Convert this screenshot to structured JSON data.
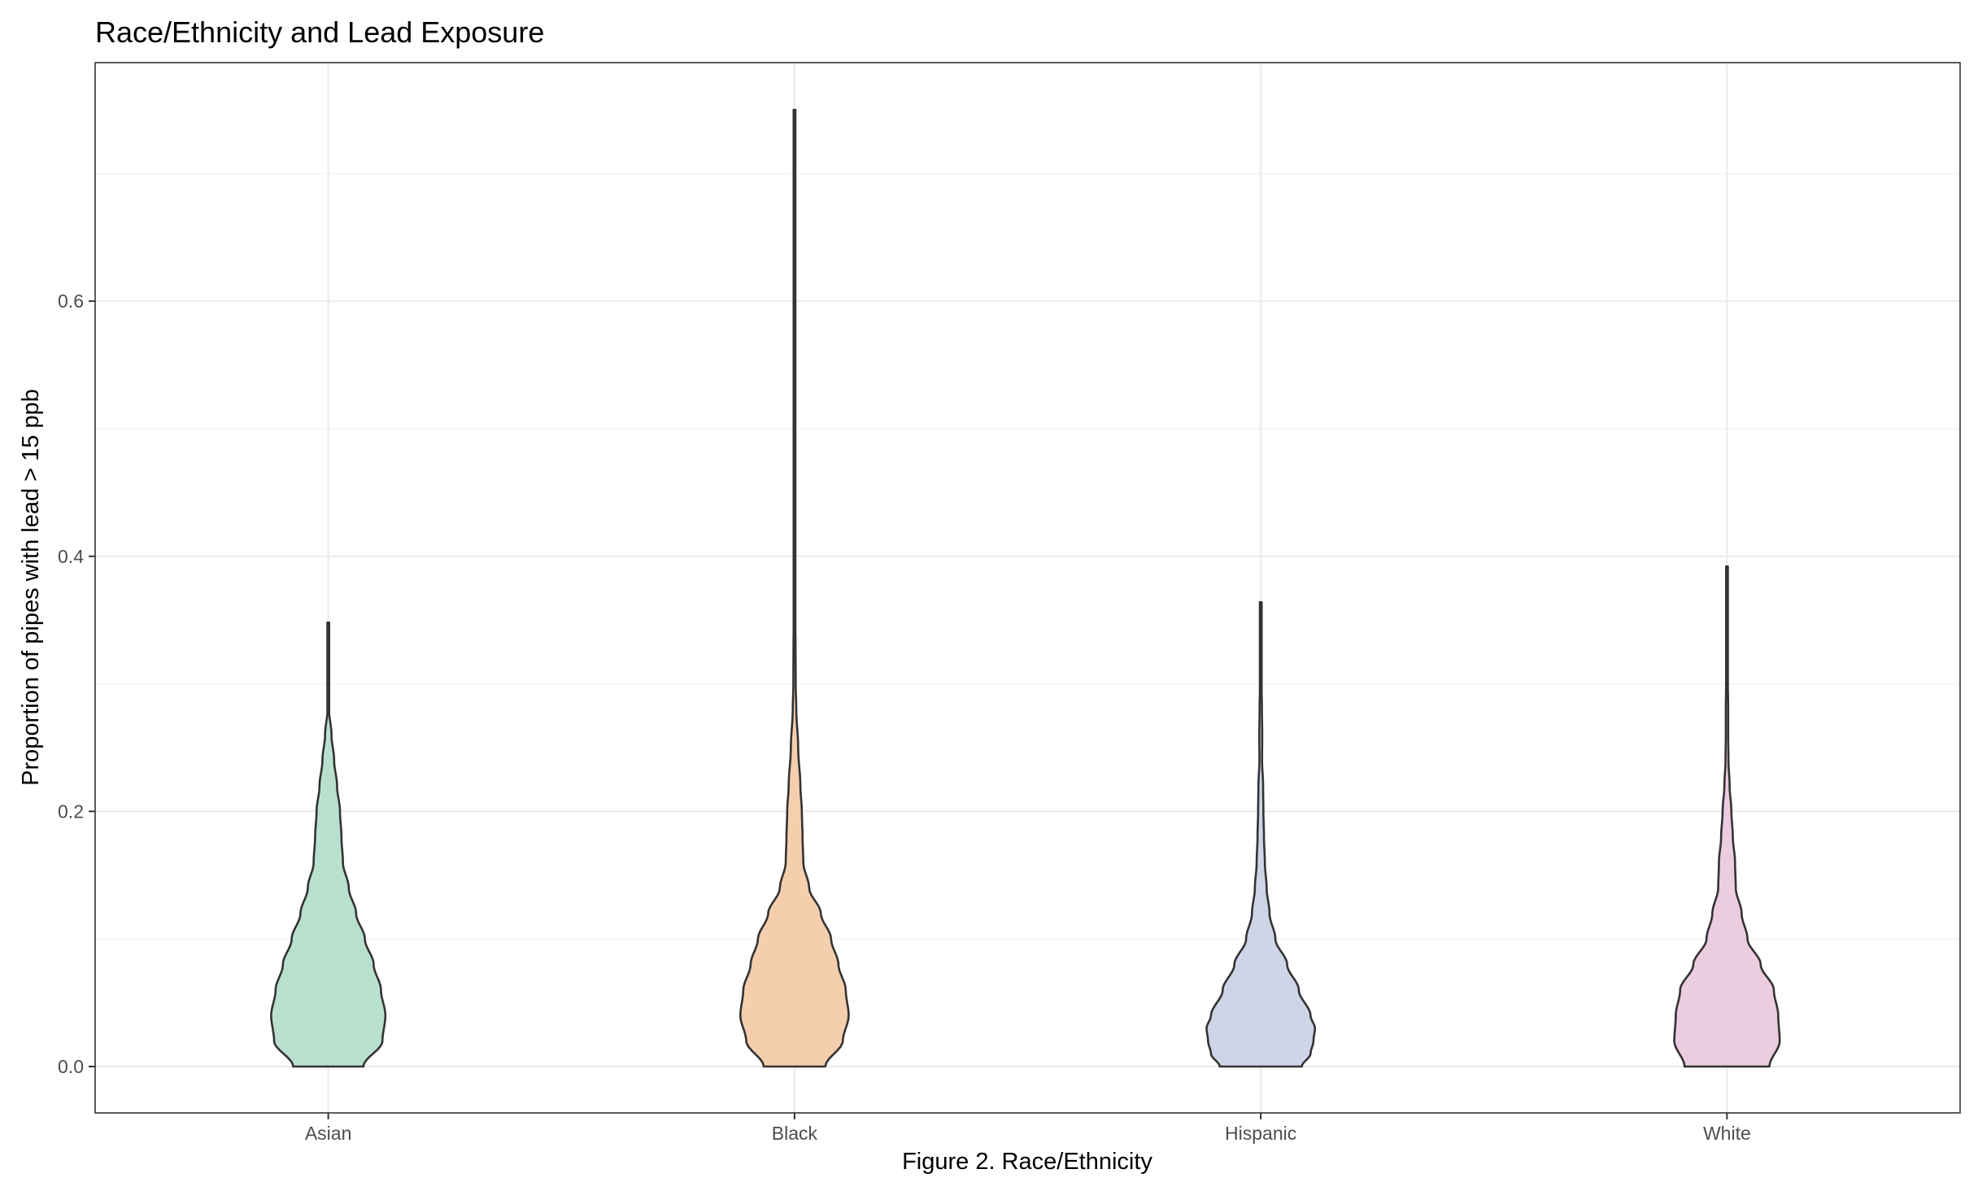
{
  "chart_data": {
    "type": "violin",
    "title": "Race/Ethnicity and Lead Exposure",
    "xlabel": "Figure 2. Race/Ethnicity",
    "ylabel": "Proportion of pipes with lead > 15 ppb",
    "ylim": [
      -0.037,
      0.788
    ],
    "yticks": [
      0.0,
      0.2,
      0.4,
      0.6
    ],
    "ytick_labels": [
      "0.0",
      "0.2",
      "0.4",
      "0.6"
    ],
    "grid": true,
    "categories": [
      "Asian",
      "Black",
      "Hispanic",
      "White"
    ],
    "series": [
      {
        "category": "Asian",
        "color": "#b9e0cf",
        "max": 0.348,
        "profile": [
          [
            0.0,
            0.24
          ],
          [
            0.02,
            0.37
          ],
          [
            0.04,
            0.39
          ],
          [
            0.06,
            0.36
          ],
          [
            0.08,
            0.31
          ],
          [
            0.1,
            0.25
          ],
          [
            0.12,
            0.19
          ],
          [
            0.14,
            0.14
          ],
          [
            0.16,
            0.1
          ],
          [
            0.18,
            0.09
          ],
          [
            0.2,
            0.08
          ],
          [
            0.22,
            0.06
          ],
          [
            0.24,
            0.04
          ],
          [
            0.26,
            0.022
          ],
          [
            0.28,
            0.005
          ],
          [
            0.3,
            0.005
          ],
          [
            0.32,
            0.005
          ],
          [
            0.348,
            0.005
          ]
        ]
      },
      {
        "category": "Black",
        "color": "#f5ceae",
        "max": 0.75,
        "profile": [
          [
            0.0,
            0.21
          ],
          [
            0.02,
            0.33
          ],
          [
            0.04,
            0.37
          ],
          [
            0.06,
            0.35
          ],
          [
            0.08,
            0.3
          ],
          [
            0.1,
            0.25
          ],
          [
            0.12,
            0.18
          ],
          [
            0.14,
            0.1
          ],
          [
            0.16,
            0.06
          ],
          [
            0.18,
            0.055
          ],
          [
            0.2,
            0.05
          ],
          [
            0.22,
            0.04
          ],
          [
            0.25,
            0.025
          ],
          [
            0.28,
            0.012
          ],
          [
            0.3,
            0.008
          ],
          [
            0.33,
            0.007
          ],
          [
            0.35,
            0.005
          ],
          [
            0.38,
            0.002
          ],
          [
            0.4,
            0.0015
          ],
          [
            0.5,
            0.001
          ],
          [
            0.6,
            0.001
          ],
          [
            0.7,
            0.001
          ],
          [
            0.72,
            0.003
          ],
          [
            0.75,
            0.005
          ]
        ]
      },
      {
        "category": "Hispanic",
        "color": "#ced5e6",
        "max": 0.364,
        "profile": [
          [
            0.0,
            0.28
          ],
          [
            0.01,
            0.34
          ],
          [
            0.02,
            0.36
          ],
          [
            0.03,
            0.37
          ],
          [
            0.04,
            0.34
          ],
          [
            0.06,
            0.26
          ],
          [
            0.08,
            0.18
          ],
          [
            0.1,
            0.1
          ],
          [
            0.12,
            0.06
          ],
          [
            0.14,
            0.04
          ],
          [
            0.16,
            0.028
          ],
          [
            0.18,
            0.022
          ],
          [
            0.2,
            0.018
          ],
          [
            0.22,
            0.016
          ],
          [
            0.24,
            0.009
          ],
          [
            0.26,
            0.01
          ],
          [
            0.28,
            0.008
          ],
          [
            0.3,
            0.005
          ],
          [
            0.33,
            0.004
          ],
          [
            0.364,
            0.005
          ]
        ]
      },
      {
        "category": "White",
        "color": "#ecccdf",
        "max": 0.392,
        "profile": [
          [
            0.0,
            0.29
          ],
          [
            0.02,
            0.36
          ],
          [
            0.04,
            0.35
          ],
          [
            0.06,
            0.32
          ],
          [
            0.08,
            0.23
          ],
          [
            0.1,
            0.14
          ],
          [
            0.12,
            0.1
          ],
          [
            0.14,
            0.06
          ],
          [
            0.16,
            0.055
          ],
          [
            0.18,
            0.04
          ],
          [
            0.2,
            0.03
          ],
          [
            0.22,
            0.018
          ],
          [
            0.24,
            0.01
          ],
          [
            0.26,
            0.008
          ],
          [
            0.28,
            0.008
          ],
          [
            0.3,
            0.006
          ],
          [
            0.33,
            0.003
          ],
          [
            0.36,
            0.002
          ],
          [
            0.392,
            0.005
          ]
        ]
      }
    ]
  }
}
